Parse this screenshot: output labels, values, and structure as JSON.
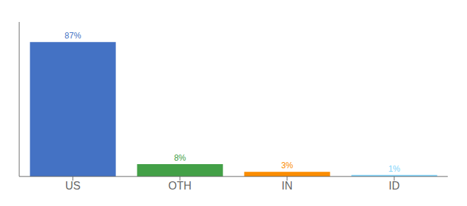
{
  "chart_data": {
    "type": "bar",
    "categories": [
      "US",
      "OTH",
      "IN",
      "ID"
    ],
    "values": [
      87,
      8,
      3,
      1
    ],
    "value_labels": [
      "87%",
      "8%",
      "3%",
      "1%"
    ],
    "colors": [
      "#4472c4",
      "#43a047",
      "#fb8c00",
      "#81d4fa"
    ],
    "ylim": [
      0,
      100
    ],
    "grid": false,
    "data_labels": true,
    "tick_labels": "x"
  }
}
